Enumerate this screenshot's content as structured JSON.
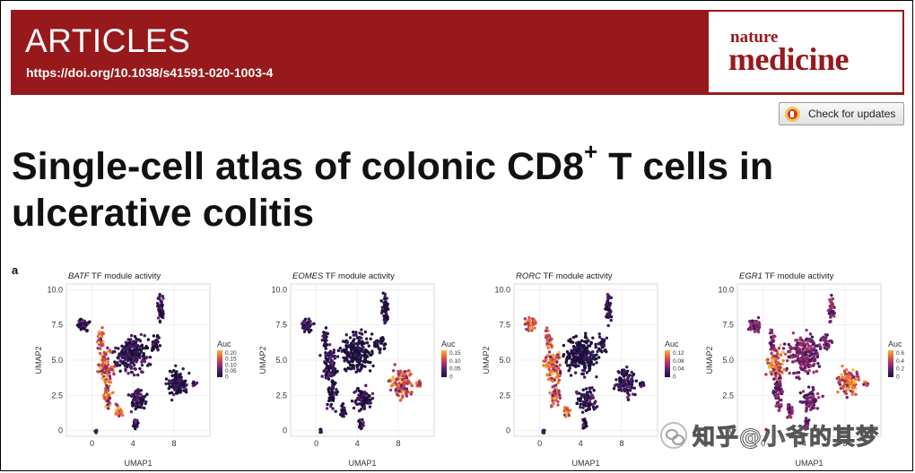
{
  "header": {
    "section_label": "ARTICLES",
    "doi": "https://doi.org/10.1038/s41591-020-1003-4",
    "logo_line1": "nature",
    "logo_line2": "medicine",
    "brand_color": "#98191c"
  },
  "toolbar": {
    "check_updates_label": "Check for updates",
    "check_updates_icon": "crossmark-icon"
  },
  "article": {
    "title_part1": "Single-cell atlas of colonic CD8",
    "title_sup": "+",
    "title_part2": " T cells in ulcerative colitis"
  },
  "figure": {
    "panel_letter": "a"
  },
  "watermark": {
    "text": "知乎@小爷的其梦"
  },
  "chart_data": [
    {
      "type": "scatter",
      "title_gene": "BATF",
      "title_rest": " TF module activity",
      "xlabel": "UMAP1",
      "ylabel": "UMAP2",
      "xticks": [
        0,
        4,
        8
      ],
      "yticks": [
        0,
        2.5,
        5.0,
        7.5,
        10.0
      ],
      "ytick_labels": [
        "0",
        "2.5",
        "5.0",
        "7.5",
        "10.0"
      ],
      "xlim": [
        -2.5,
        11.5
      ],
      "ylim": [
        -0.4,
        10.4
      ],
      "legend_title": "Auc",
      "legend_ticks": [
        "0.20",
        "0.15",
        "0.10",
        "0.05",
        "0"
      ],
      "hot_regions": [
        "left-band",
        "left-cluster"
      ]
    },
    {
      "type": "scatter",
      "title_gene": "EOMES",
      "title_rest": " TF module activity",
      "xlabel": "UMAP1",
      "ylabel": "UMAP2",
      "xticks": [
        0,
        4,
        8
      ],
      "yticks": [
        0,
        2.5,
        5.0,
        7.5,
        10.0
      ],
      "ytick_labels": [
        "0",
        "2.5",
        "5.0",
        "7.5",
        "10.0"
      ],
      "xlim": [
        -2.5,
        11.5
      ],
      "ylim": [
        -0.4,
        10.4
      ],
      "legend_title": "Auc",
      "legend_ticks": [
        "0.15",
        "0.10",
        "0.05",
        "0"
      ],
      "hot_regions": [
        "right-cluster"
      ]
    },
    {
      "type": "scatter",
      "title_gene": "RORC",
      "title_rest": " TF module activity",
      "xlabel": "UMAP1",
      "ylabel": "UMAP2",
      "xticks": [
        0,
        4,
        8
      ],
      "yticks": [
        0,
        2.5,
        5.0,
        7.5,
        10.0
      ],
      "ytick_labels": [
        "0",
        "2.5",
        "5.0",
        "7.5",
        "10.0"
      ],
      "xlim": [
        -2.5,
        11.5
      ],
      "ylim": [
        -0.4,
        10.4
      ],
      "legend_title": "Auc",
      "legend_ticks": [
        "0.12",
        "0.08",
        "0.04",
        "0"
      ],
      "hot_regions": [
        "left-band",
        "left-cluster",
        "top-left"
      ]
    },
    {
      "type": "scatter",
      "title_gene": "EGR1",
      "title_rest": " TF module activity",
      "xlabel": "UMAP1",
      "ylabel": "UMAP2",
      "xticks": [
        0,
        4,
        8
      ],
      "yticks": [
        0,
        2.5,
        5.0,
        7.5,
        10.0
      ],
      "ytick_labels": [
        "0",
        "2.5",
        "5.0",
        "7.5",
        "10.0"
      ],
      "xlim": [
        -2.5,
        11.5
      ],
      "ylim": [
        -0.4,
        10.4
      ],
      "legend_title": "Auc",
      "legend_ticks": [
        "0.6",
        "0.4",
        "0.2",
        "0"
      ],
      "hot_regions": [
        "right-cluster",
        "left-cluster"
      ]
    }
  ]
}
